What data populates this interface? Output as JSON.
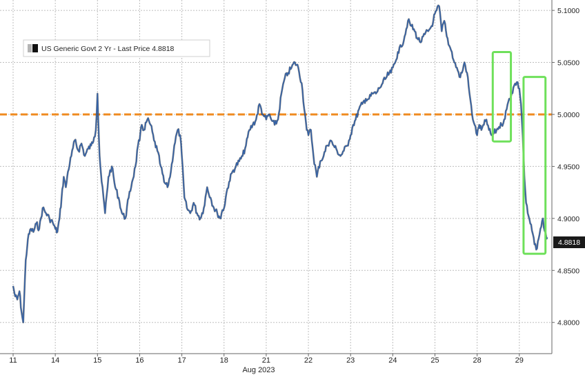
{
  "chart_data": {
    "type": "line",
    "legend": {
      "label": "US Generic Govt 2 Yr - Last Price 4.8818",
      "placement": "top-left",
      "swatch_colors": [
        "#b5b5b5",
        "#111111"
      ]
    },
    "xlabel": "Aug 2023",
    "x_ticks": [
      "11",
      "14",
      "15",
      "16",
      "17",
      "18",
      "21",
      "22",
      "23",
      "24",
      "25",
      "28",
      "29"
    ],
    "ylim": [
      4.77,
      5.11
    ],
    "y_ticks": [
      "5.1000",
      "5.0500",
      "5.0000",
      "4.9500",
      "4.9000",
      "4.8500",
      "4.8000"
    ],
    "grid": true,
    "last_price_label": "4.8818",
    "line_color": "#3563a8",
    "reference_line": {
      "value": 5.0,
      "color": "#ef8a1f",
      "style": "dashed"
    },
    "highlight_color": "#6ee05a",
    "highlight_ranges": [
      {
        "x_start": 11.37,
        "x_end": 11.8,
        "y_low": 4.974,
        "y_high": 5.06
      },
      {
        "x_start": 12.1,
        "x_end": 12.62,
        "y_low": 4.866,
        "y_high": 5.036
      }
    ],
    "series": [
      {
        "x": [
          0.0,
          0.05,
          0.1,
          0.15,
          0.2,
          0.24,
          0.3,
          0.35,
          0.42,
          0.48,
          0.55,
          0.62,
          0.7,
          0.78,
          0.86,
          0.94,
          1.0,
          1.05,
          1.1,
          1.15,
          1.2,
          1.25,
          1.3,
          1.38,
          1.46,
          1.55,
          1.62,
          1.7,
          1.78,
          1.85,
          1.92,
          1.96,
          2.0,
          2.05,
          2.1,
          2.18,
          2.26,
          2.34,
          2.42,
          2.5,
          2.58,
          2.66,
          2.74,
          2.82,
          2.9,
          2.96,
          3.0,
          3.05,
          3.1,
          3.18,
          3.26,
          3.34,
          3.42,
          3.5,
          3.58,
          3.66,
          3.74,
          3.82,
          3.9,
          3.96,
          4.0,
          4.06,
          4.12,
          4.2,
          4.28,
          4.36,
          4.44,
          4.52,
          4.6,
          4.68,
          4.76,
          4.84,
          4.92,
          4.96,
          5.0,
          5.06,
          5.12,
          5.2,
          5.28,
          5.36,
          5.44,
          5.52,
          5.6,
          5.68,
          5.76,
          5.84,
          5.92,
          5.96,
          6.0,
          6.06,
          6.12,
          6.2,
          6.28,
          6.36,
          6.44,
          6.52,
          6.6,
          6.68,
          6.76,
          6.84,
          6.92,
          6.96,
          7.0,
          7.06,
          7.12,
          7.2,
          7.28,
          7.36,
          7.44,
          7.52,
          7.6,
          7.68,
          7.76,
          7.84,
          7.92,
          7.96,
          8.0,
          8.06,
          8.12,
          8.2,
          8.28,
          8.36,
          8.44,
          8.52,
          8.6,
          8.68,
          8.76,
          8.84,
          8.92,
          8.96,
          9.0,
          9.06,
          9.12,
          9.2,
          9.28,
          9.36,
          9.44,
          9.52,
          9.6,
          9.68,
          9.76,
          9.84,
          9.92,
          9.96,
          10.0,
          10.04,
          10.1,
          10.16,
          10.22,
          10.28,
          10.34,
          10.4,
          10.46,
          10.52,
          10.58,
          10.64,
          10.7,
          10.76,
          10.82,
          10.88,
          10.94,
          11.0,
          11.05,
          11.1,
          11.16,
          11.22,
          11.28,
          11.34,
          11.4,
          11.46,
          11.52,
          11.58,
          11.64,
          11.7,
          11.76,
          11.82,
          11.88,
          11.94,
          12.0,
          12.04,
          12.08,
          12.12,
          12.16,
          12.2,
          12.26,
          12.32,
          12.36,
          12.4,
          12.44,
          12.48,
          12.52,
          12.56,
          12.6,
          12.64,
          12.66
        ],
        "values": [
          4.835,
          4.825,
          4.822,
          4.83,
          4.81,
          4.8,
          4.86,
          4.88,
          4.89,
          4.887,
          4.895,
          4.89,
          4.91,
          4.905,
          4.9,
          4.896,
          4.89,
          4.887,
          4.9,
          4.92,
          4.94,
          4.93,
          4.945,
          4.96,
          4.975,
          4.965,
          4.972,
          4.96,
          4.967,
          4.97,
          4.978,
          4.985,
          5.02,
          4.96,
          4.935,
          4.905,
          4.94,
          4.95,
          4.93,
          4.92,
          4.905,
          4.9,
          4.92,
          4.935,
          4.95,
          4.97,
          4.975,
          4.99,
          4.985,
          4.995,
          4.99,
          4.975,
          4.965,
          4.95,
          4.935,
          4.93,
          4.945,
          4.97,
          4.985,
          4.98,
          4.96,
          4.92,
          4.91,
          4.905,
          4.915,
          4.905,
          4.9,
          4.91,
          4.93,
          4.92,
          4.91,
          4.905,
          4.9,
          4.908,
          4.91,
          4.925,
          4.935,
          4.945,
          4.95,
          4.955,
          4.96,
          4.97,
          4.985,
          4.99,
          4.995,
          5.01,
          5.0,
          4.998,
          4.995,
          5.0,
          4.995,
          4.99,
          4.995,
          5.02,
          5.035,
          5.04,
          5.045,
          5.05,
          5.045,
          5.03,
          5.0,
          4.985,
          4.98,
          4.985,
          4.96,
          4.94,
          4.955,
          4.96,
          4.97,
          4.975,
          4.97,
          4.965,
          4.96,
          4.965,
          4.97,
          4.975,
          4.98,
          4.99,
          4.995,
          5.005,
          5.01,
          5.015,
          5.015,
          5.02,
          5.02,
          5.025,
          5.03,
          5.035,
          5.04,
          5.04,
          5.045,
          5.05,
          5.06,
          5.065,
          5.075,
          5.09,
          5.085,
          5.08,
          5.072,
          5.07,
          5.077,
          5.08,
          5.085,
          5.09,
          5.097,
          5.1,
          5.104,
          5.08,
          5.09,
          5.075,
          5.066,
          5.06,
          5.05,
          5.045,
          5.036,
          5.04,
          5.05,
          5.04,
          5.02,
          5.0,
          4.99,
          4.98,
          4.99,
          4.985,
          4.99,
          4.995,
          4.985,
          4.98,
          4.982,
          4.985,
          4.988,
          4.99,
          4.995,
          5.005,
          5.015,
          5.02,
          5.028,
          5.031,
          5.025,
          5.01,
          4.98,
          4.94,
          4.915,
          4.905,
          4.895,
          4.885,
          4.875,
          4.87,
          4.878,
          4.885,
          4.892,
          4.9,
          4.888,
          4.882,
          4.8818
        ]
      }
    ]
  }
}
